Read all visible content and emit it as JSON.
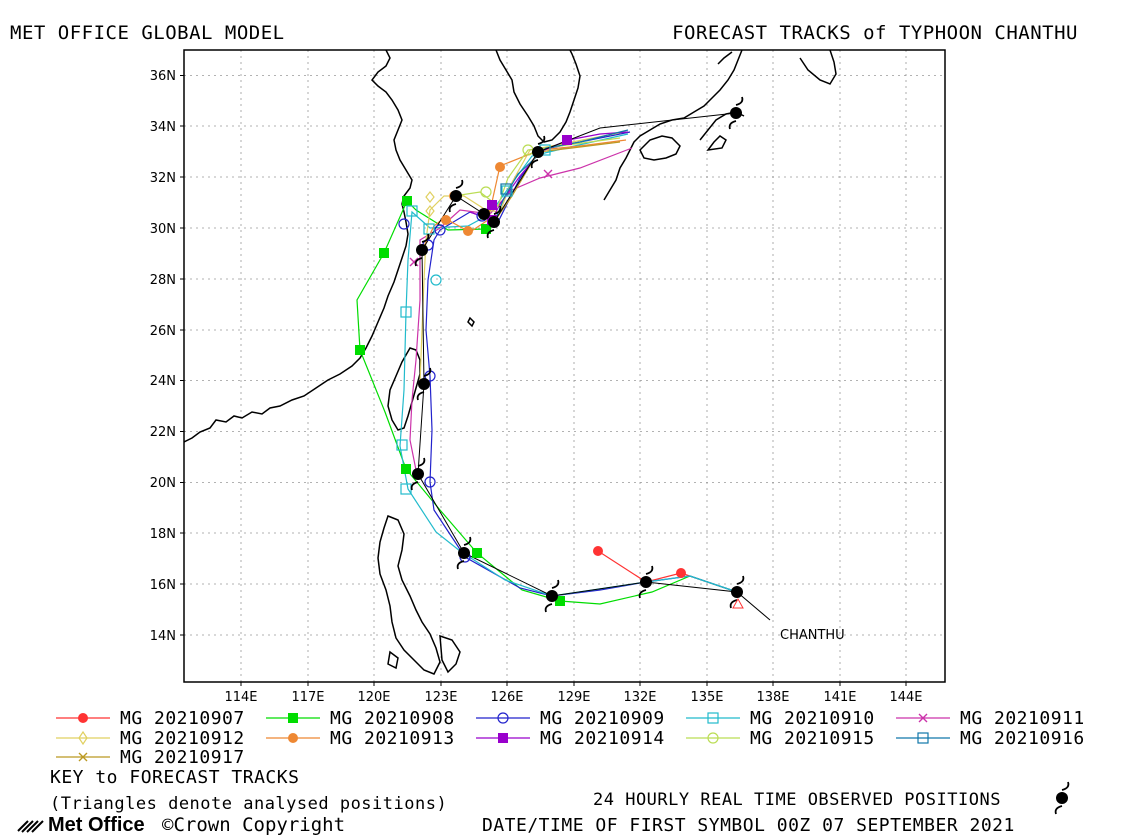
{
  "header": {
    "left": "MET OFFICE GLOBAL MODEL",
    "right": "FORECAST TRACKS of TYPHOON CHANTHU"
  },
  "map": {
    "lat_labels": [
      "14N",
      "16N",
      "18N",
      "20N",
      "22N",
      "24N",
      "26N",
      "28N",
      "30N",
      "32N",
      "34N",
      "36N"
    ],
    "lon_labels": [
      "114E",
      "117E",
      "120E",
      "123E",
      "126E",
      "129E",
      "132E",
      "135E",
      "138E",
      "141E",
      "144E"
    ],
    "storm_label": "CHANTHU"
  },
  "legend": {
    "items": [
      {
        "label": "MG 20210907",
        "color": "#ff3333",
        "marker": "filled-circle"
      },
      {
        "label": "MG 20210908",
        "color": "#00dd00",
        "marker": "filled-square"
      },
      {
        "label": "MG 20210909",
        "color": "#2222cc",
        "marker": "open-circle"
      },
      {
        "label": "MG 20210910",
        "color": "#22bbcc",
        "marker": "open-square"
      },
      {
        "label": "MG 20210911",
        "color": "#cc33aa",
        "marker": "x"
      },
      {
        "label": "MG 20210912",
        "color": "#e0d060",
        "marker": "diamond"
      },
      {
        "label": "MG 20210913",
        "color": "#ee8833",
        "marker": "filled-circle"
      },
      {
        "label": "MG 20210914",
        "color": "#9900cc",
        "marker": "filled-square"
      },
      {
        "label": "MG 20210915",
        "color": "#bbdd55",
        "marker": "open-circle"
      },
      {
        "label": "MG 20210916",
        "color": "#1177aa",
        "marker": "open-square"
      },
      {
        "label": "MG 20210917",
        "color": "#bb9922",
        "marker": "x"
      }
    ]
  },
  "footer": {
    "key_title": "KEY to FORECAST TRACKS",
    "triangles_note": "(Triangles denote analysed positions)",
    "observed_label": "24 HOURLY REAL TIME OBSERVED POSITIONS",
    "first_symbol": "DATE/TIME OF FIRST SYMBOL 00Z 07 SEPTEMBER 2021",
    "logo_text": "Met Office",
    "copyright": "©Crown Copyright"
  }
}
